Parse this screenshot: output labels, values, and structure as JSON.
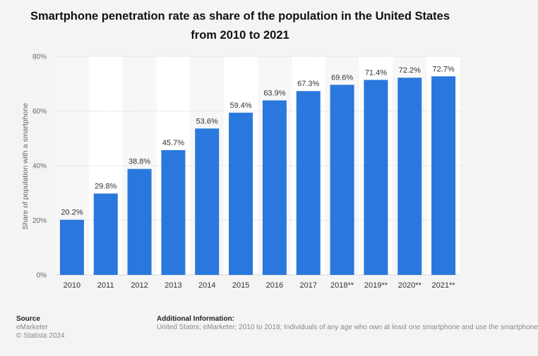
{
  "chart_data": {
    "type": "bar",
    "title": "Smartphone penetration rate as share of the population in the United States from 2010 to 2021",
    "ylabel": "Share of population with a smartphone",
    "xlabel": "",
    "ylim": [
      0,
      80
    ],
    "yticks": [
      "0%",
      "20%",
      "40%",
      "60%",
      "80%"
    ],
    "categories": [
      "2010",
      "2011",
      "2012",
      "2013",
      "2014",
      "2015",
      "2016",
      "2017",
      "2018**",
      "2019**",
      "2020**",
      "2021**"
    ],
    "values": [
      20.2,
      29.8,
      38.8,
      45.7,
      53.6,
      59.4,
      63.9,
      67.3,
      69.6,
      71.4,
      72.2,
      72.7
    ],
    "value_labels": [
      "20.2%",
      "29.8%",
      "38.8%",
      "45.7%",
      "53.6%",
      "59.4%",
      "63.9%",
      "67.3%",
      "69.6%",
      "71.4%",
      "72.2%",
      "72.7%"
    ],
    "bar_color": "#2a78dd",
    "grid": true,
    "legend": "none"
  },
  "footer": {
    "source_heading": "Source",
    "source_name": "eMarketer",
    "copyright": "© Statista 2024",
    "info_heading": "Additional Information:",
    "info_text": "United States; eMarketer; 2010 to 2018; Individuals of any age who own at least one smartphone and use the smartphone"
  }
}
